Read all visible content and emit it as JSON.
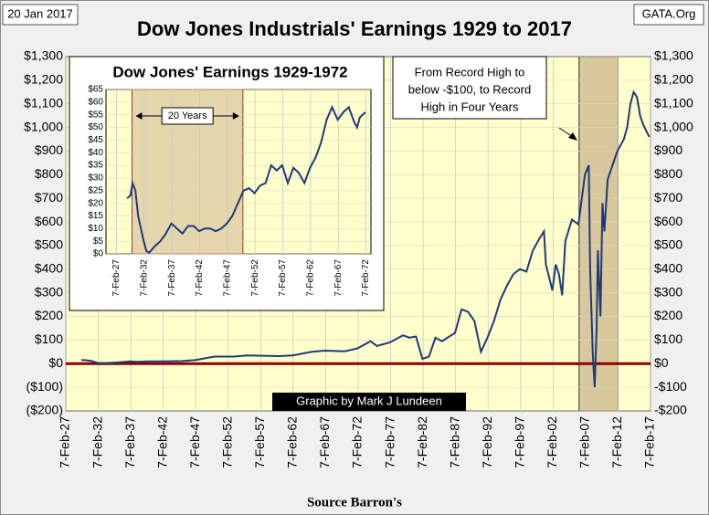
{
  "chart_data": [
    {
      "type": "line",
      "title": "Dow Jones Industrials' Earnings 1929 to 2017",
      "date_stamp": "20 Jan 2017",
      "site": "GATA.Org",
      "credit": "Graphic by Mark J Lundeen",
      "source": "Source Barron's",
      "annotation": [
        "From  Record High to",
        "below -$100, to Record",
        "High in Four Years"
      ],
      "shade": [
        2006.1,
        2012.1
      ],
      "grid": true,
      "zero_line_color": "#8b0000",
      "plot_color": "#ffffcc",
      "xlim": [
        1927.1,
        2017.1
      ],
      "xticks": [
        {
          "value": 1927.1,
          "label": "7-Feb-27"
        },
        {
          "value": 1932.1,
          "label": "7-Feb-32"
        },
        {
          "value": 1937.1,
          "label": "7-Feb-37"
        },
        {
          "value": 1942.1,
          "label": "7-Feb-42"
        },
        {
          "value": 1947.1,
          "label": "7-Feb-47"
        },
        {
          "value": 1952.1,
          "label": "7-Feb-52"
        },
        {
          "value": 1957.1,
          "label": "7-Feb-57"
        },
        {
          "value": 1962.1,
          "label": "7-Feb-62"
        },
        {
          "value": 1967.1,
          "label": "7-Feb-67"
        },
        {
          "value": 1972.1,
          "label": "7-Feb-72"
        },
        {
          "value": 1977.1,
          "label": "7-Feb-77"
        },
        {
          "value": 1982.1,
          "label": "7-Feb-82"
        },
        {
          "value": 1987.1,
          "label": "7-Feb-87"
        },
        {
          "value": 1992.1,
          "label": "7-Feb-92"
        },
        {
          "value": 1997.1,
          "label": "7-Feb-97"
        },
        {
          "value": 2002.1,
          "label": "7-Feb-02"
        },
        {
          "value": 2007.1,
          "label": "7-Feb-07"
        },
        {
          "value": 2012.1,
          "label": "7-Feb-12"
        },
        {
          "value": 2017.1,
          "label": "7-Feb-17"
        }
      ],
      "ylim": [
        -200,
        1300
      ],
      "yticks": [
        {
          "value": -200,
          "label": "($200)"
        },
        {
          "value": -100,
          "label": "($100)"
        },
        {
          "value": 0,
          "label": "$0"
        },
        {
          "value": 100,
          "label": "$100"
        },
        {
          "value": 200,
          "label": "$200"
        },
        {
          "value": 300,
          "label": "$300"
        },
        {
          "value": 400,
          "label": "$400"
        },
        {
          "value": 500,
          "label": "$500"
        },
        {
          "value": 600,
          "label": "$600"
        },
        {
          "value": 700,
          "label": "$700"
        },
        {
          "value": 800,
          "label": "$800"
        },
        {
          "value": 900,
          "label": "$900"
        },
        {
          "value": 1000,
          "label": "$1,000"
        },
        {
          "value": 1100,
          "label": "$1,100"
        },
        {
          "value": 1200,
          "label": "$1,200"
        },
        {
          "value": 1300,
          "label": "$1,300"
        }
      ],
      "y2lim": [
        -200,
        1300
      ],
      "y2ticks": [
        {
          "value": -200,
          "label": "-$200"
        },
        {
          "value": -100,
          "label": "-$100"
        },
        {
          "value": 0,
          "label": "$0"
        },
        {
          "value": 100,
          "label": "$100"
        },
        {
          "value": 200,
          "label": "$200"
        },
        {
          "value": 300,
          "label": "$300"
        },
        {
          "value": 400,
          "label": "$400"
        },
        {
          "value": 500,
          "label": "$500"
        },
        {
          "value": 600,
          "label": "$600"
        },
        {
          "value": 700,
          "label": "$700"
        },
        {
          "value": 800,
          "label": "$800"
        },
        {
          "value": 900,
          "label": "$900"
        },
        {
          "value": 1000,
          "label": "$1,000"
        },
        {
          "value": 1100,
          "label": "$1,100"
        },
        {
          "value": 1200,
          "label": "$1,200"
        },
        {
          "value": 1300,
          "label": "$1,300"
        }
      ],
      "series": [
        {
          "name": "Dow Jones Earnings",
          "color": "#1f3a7a",
          "x": [
            1929.5,
            1930,
            1931,
            1932,
            1933,
            1935,
            1937,
            1938,
            1940,
            1942,
            1945,
            1947,
            1950,
            1953,
            1955,
            1960,
            1962,
            1965,
            1967,
            1970,
            1972,
            1974,
            1975,
            1977,
            1979,
            1980,
            1981,
            1982,
            1983,
            1984,
            1985,
            1987,
            1988,
            1989,
            1990,
            1991,
            1992,
            1993,
            1994,
            1995,
            1996,
            1997,
            1998,
            1999,
            2000,
            2000.7,
            2001,
            2002,
            2002.5,
            2003,
            2003.5,
            2004,
            2005,
            2006,
            2007,
            2007.6,
            2007.8,
            2008.2,
            2008.5,
            2008.8,
            2009,
            2009.4,
            2009.7,
            2010,
            2010.5,
            2011,
            2012,
            2013,
            2013.5,
            2014,
            2014.5,
            2015,
            2015.5,
            2016,
            2016.9
          ],
          "values": [
            15,
            15,
            12,
            3,
            2,
            5,
            10,
            8,
            10,
            10,
            11,
            15,
            30,
            30,
            35,
            32,
            35,
            50,
            55,
            52,
            65,
            95,
            75,
            90,
            120,
            110,
            115,
            20,
            30,
            110,
            95,
            130,
            230,
            220,
            180,
            50,
            110,
            180,
            270,
            330,
            380,
            400,
            390,
            480,
            530,
            560,
            420,
            310,
            420,
            380,
            290,
            520,
            610,
            590,
            800,
            840,
            400,
            50,
            -100,
            150,
            480,
            200,
            680,
            560,
            780,
            820,
            900,
            950,
            1000,
            1100,
            1150,
            1130,
            1050,
            1010,
            960
          ]
        }
      ]
    },
    {
      "type": "line",
      "title": "Dow Jones' Earnings 1929-1972",
      "shade": [
        1929.9,
        1949.9
      ],
      "shade_label": "20 Years",
      "grid": true,
      "plot_color": "#ffffcc",
      "xlim": [
        1925.2,
        1973
      ],
      "xticks": [
        {
          "value": 1927.1,
          "label": "7-Feb-27"
        },
        {
          "value": 1932.1,
          "label": "7-Feb-32"
        },
        {
          "value": 1937.1,
          "label": "7-Feb-37"
        },
        {
          "value": 1942.1,
          "label": "7-Feb-42"
        },
        {
          "value": 1947.1,
          "label": "7-Feb-47"
        },
        {
          "value": 1952.1,
          "label": "7-Feb-52"
        },
        {
          "value": 1957.1,
          "label": "7-Feb-57"
        },
        {
          "value": 1962.1,
          "label": "7-Feb-62"
        },
        {
          "value": 1967.1,
          "label": "7-Feb-67"
        },
        {
          "value": 1972.1,
          "label": "7-Feb-72"
        }
      ],
      "ylim": [
        0,
        65
      ],
      "yticks": [
        {
          "value": 0,
          "label": "$0"
        },
        {
          "value": 5,
          "label": "$5"
        },
        {
          "value": 10,
          "label": "$10"
        },
        {
          "value": 15,
          "label": "$15"
        },
        {
          "value": 20,
          "label": "$20"
        },
        {
          "value": 25,
          "label": "$25"
        },
        {
          "value": 30,
          "label": "$30"
        },
        {
          "value": 35,
          "label": "$35"
        },
        {
          "value": 40,
          "label": "$40"
        },
        {
          "value": 45,
          "label": "$45"
        },
        {
          "value": 50,
          "label": "$50"
        },
        {
          "value": 55,
          "label": "$55"
        },
        {
          "value": 60,
          "label": "$60"
        },
        {
          "value": 65,
          "label": "$65"
        }
      ],
      "series": [
        {
          "name": "Dow Jones Earnings 1929-1972",
          "color": "#1f3a7a",
          "x": [
            1929,
            1929.6,
            1930,
            1930.5,
            1931,
            1932,
            1932.5,
            1933,
            1934,
            1935,
            1936,
            1937,
            1938,
            1939,
            1940,
            1941,
            1942,
            1943,
            1944,
            1945,
            1946,
            1947,
            1948,
            1949,
            1950,
            1951,
            1952,
            1953,
            1954,
            1955,
            1956,
            1957,
            1958,
            1959,
            1960,
            1961,
            1962,
            1963,
            1964,
            1965,
            1966,
            1967,
            1968,
            1969,
            1970,
            1970.5,
            1971,
            1972
          ],
          "values": [
            22,
            23,
            28,
            25,
            15,
            5,
            1,
            0.5,
            3,
            5,
            8,
            12,
            10,
            8,
            11,
            11,
            9,
            10,
            10,
            9,
            10,
            12,
            15,
            20,
            25,
            26,
            24,
            27,
            28,
            35,
            33,
            35,
            28,
            34,
            32,
            28,
            34,
            38,
            44,
            53,
            58,
            53,
            56,
            58,
            52,
            50,
            54,
            56
          ]
        }
      ]
    }
  ]
}
